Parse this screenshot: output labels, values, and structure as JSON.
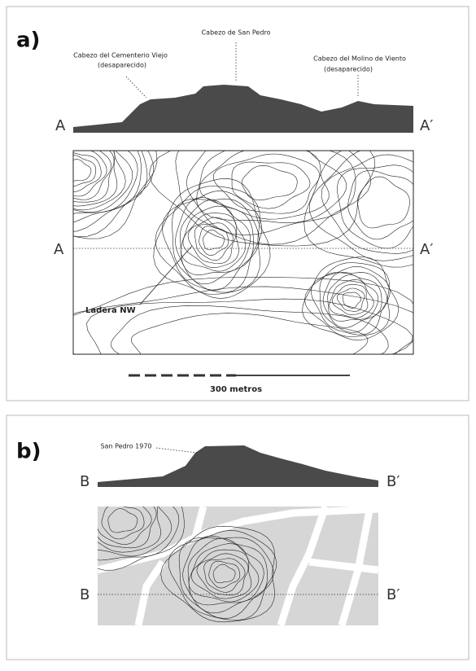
{
  "panels": [
    {
      "label": "a)",
      "peaks": [
        {
          "name": "Cabezo de San Pedro"
        },
        {
          "name": "Cabezo del Cementerio Viejo",
          "note": "(desaparecido)"
        },
        {
          "name": "Cabezo del Molino de Viento",
          "note": "(desaparecido)"
        }
      ],
      "profile_ends": [
        "A",
        "A′"
      ],
      "map_ends": [
        "A",
        "A′"
      ],
      "annotation": "Ladera NW",
      "scale": "300 metros"
    },
    {
      "label": "b)",
      "peaks": [
        {
          "name": "San Pedro 1970"
        }
      ],
      "profile_ends": [
        "B",
        "B′"
      ],
      "map_ends": [
        "B",
        "B′"
      ]
    }
  ]
}
